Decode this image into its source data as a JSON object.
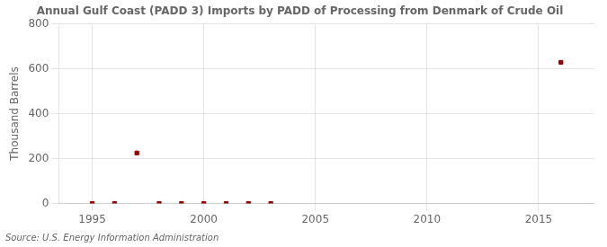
{
  "chart_data": {
    "type": "scatter",
    "title": "Annual Gulf Coast (PADD 3) Imports by PADD of Processing from Denmark of Crude Oil",
    "ylabel": "Thousand Barrels",
    "source": "Source: U.S. Energy Information Administration",
    "x": [
      1995,
      1996,
      1997,
      1998,
      1999,
      2000,
      2001,
      2002,
      2003,
      2016
    ],
    "values": [
      0,
      0,
      225,
      0,
      0,
      0,
      0,
      0,
      0,
      628
    ],
    "color": "#990000",
    "marker": "square",
    "xlim": [
      1993.5,
      2017.5
    ],
    "ylim": [
      0,
      800
    ],
    "xticks": [
      1995,
      2000,
      2005,
      2010,
      2015
    ],
    "yticks": [
      0,
      200,
      400,
      600,
      800
    ],
    "grid": true
  }
}
